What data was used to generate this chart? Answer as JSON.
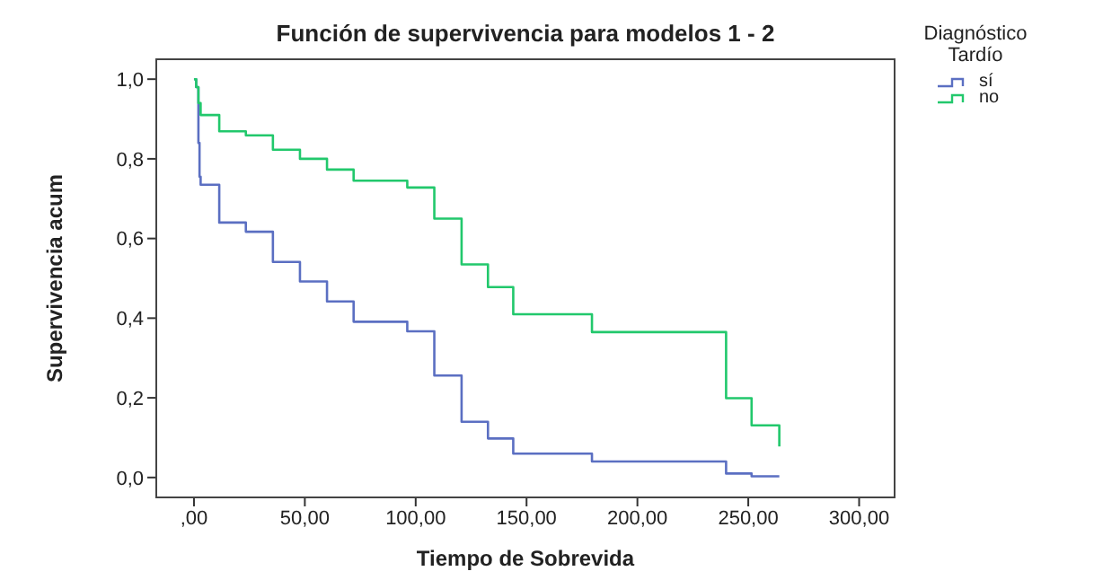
{
  "chart_data": {
    "type": "step",
    "title": "Función de supervivencia para modelos 1 - 2",
    "xlabel": "Tiempo de Sobrevida",
    "ylabel": "Supervivencia acum",
    "legend_title": "Diagnóstico Tardío",
    "legend": "top right",
    "grid": false,
    "xlim": [
      -17,
      316
    ],
    "xticks": [
      {
        "value": 0,
        "label": ",00"
      },
      {
        "value": 50,
        "label": "50,00"
      },
      {
        "value": 100,
        "label": "100,00"
      },
      {
        "value": 150,
        "label": "150,00"
      },
      {
        "value": 200,
        "label": "200,00"
      },
      {
        "value": 250,
        "label": "250,00"
      },
      {
        "value": 300,
        "label": "300,00"
      }
    ],
    "ylim": [
      -0.05,
      1.05
    ],
    "yticks": [
      {
        "value": 0,
        "label": "0,0"
      },
      {
        "value": 0.2,
        "label": "0,2"
      },
      {
        "value": 0.4,
        "label": "0,4"
      },
      {
        "value": 0.6,
        "label": "0,6"
      },
      {
        "value": 0.8,
        "label": "0,8"
      },
      {
        "value": 1,
        "label": "1,0"
      }
    ],
    "series": [
      {
        "name": "sí",
        "color": "#5b6fc2",
        "x": [
          0,
          1,
          2,
          2.5,
          3,
          11.4,
          23.4,
          35.6,
          47.8,
          60,
          72,
          96.2,
          108.4,
          120.7,
          132.6,
          144,
          179.5,
          240,
          251.5,
          264
        ],
        "values": [
          1,
          0.98,
          0.84,
          0.755,
          0.735,
          0.64,
          0.617,
          0.541,
          0.492,
          0.442,
          0.391,
          0.367,
          0.256,
          0.14,
          0.098,
          0.06,
          0.04,
          0.01,
          0.003,
          0.003
        ]
      },
      {
        "name": "no",
        "color": "#22c86c",
        "x": [
          0,
          1,
          2,
          3,
          11.4,
          23.4,
          35.6,
          47.8,
          60,
          72,
          96.2,
          108.4,
          120.7,
          132.6,
          144,
          179.5,
          240,
          251.5,
          264
        ],
        "values": [
          1,
          0.98,
          0.94,
          0.91,
          0.869,
          0.859,
          0.823,
          0.8,
          0.773,
          0.745,
          0.728,
          0.65,
          0.535,
          0.478,
          0.41,
          0.365,
          0.199,
          0.131,
          0.078
        ]
      }
    ]
  }
}
